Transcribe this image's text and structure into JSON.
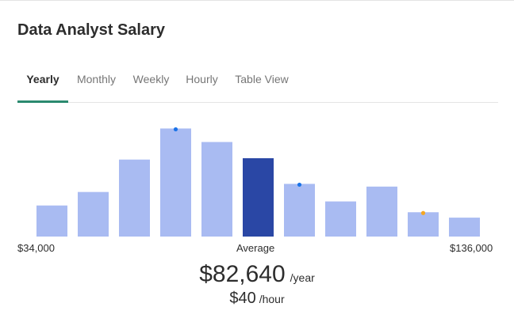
{
  "page": {
    "title": "Data Analyst Salary"
  },
  "tabs": [
    {
      "label": "Yearly",
      "active": true
    },
    {
      "label": "Monthly",
      "active": false
    },
    {
      "label": "Weekly",
      "active": false
    },
    {
      "label": "Hourly",
      "active": false
    },
    {
      "label": "Table View",
      "active": false
    }
  ],
  "colors": {
    "bar": "#a9bbf2",
    "bar_highlight": "#2a47a5",
    "tab_accent": "#2b8a6f",
    "marker_blue": "#1a73e8",
    "marker_orange": "#f5a623"
  },
  "chart_data": {
    "type": "bar",
    "values": [
      23,
      33,
      57,
      80,
      70,
      58,
      39,
      26,
      37,
      18,
      14
    ],
    "highlight_index": 5,
    "markers": [
      {
        "index": 3,
        "color": "#1a73e8"
      },
      {
        "index": 6,
        "color": "#1a73e8"
      },
      {
        "index": 9,
        "color": "#f5a623"
      }
    ],
    "ylim": [
      0,
      82
    ],
    "min_label": "$34,000",
    "average_label": "Average",
    "max_label": "$136,000"
  },
  "summary": {
    "yearly_value": "$82,640",
    "yearly_unit": "/year",
    "hourly_value": "$40",
    "hourly_unit": "/hour"
  }
}
